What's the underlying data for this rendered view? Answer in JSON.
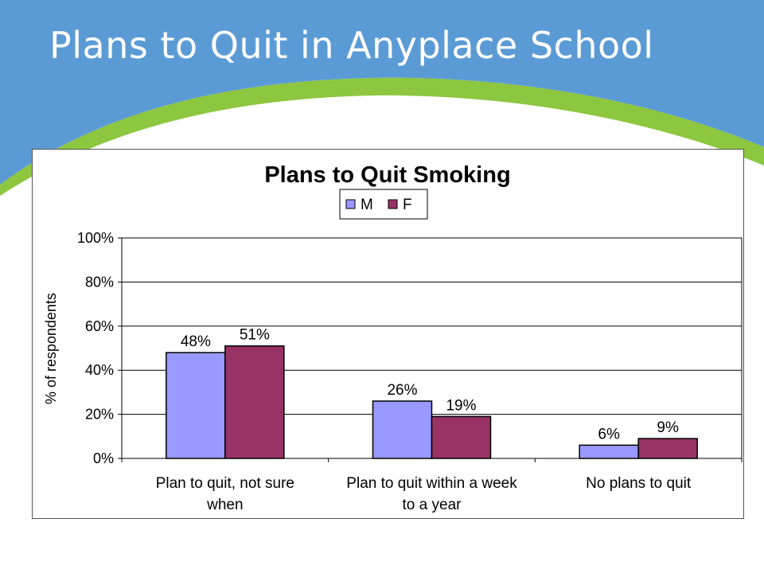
{
  "slide": {
    "title": "Plans to Quit in Anyplace School",
    "colors": {
      "header_blue": "#5b9bd5",
      "accent_green": "#8dc63f"
    }
  },
  "chart_data": {
    "type": "bar",
    "title": "Plans to Quit Smoking",
    "xlabel": "",
    "ylabel": "% of respondents",
    "ylim": [
      0,
      100
    ],
    "yticks": [
      "0%",
      "20%",
      "40%",
      "60%",
      "80%",
      "100%"
    ],
    "categories": [
      [
        "Plan to quit, not sure",
        "when"
      ],
      [
        "Plan to quit within a week",
        "to a year"
      ],
      [
        "No plans to quit"
      ]
    ],
    "series": [
      {
        "name": "M",
        "color": "#9999ff",
        "values": [
          48,
          26,
          6
        ],
        "labels": [
          "48%",
          "26%",
          "6%"
        ]
      },
      {
        "name": "F",
        "color": "#993366",
        "values": [
          51,
          19,
          9
        ],
        "labels": [
          "51%",
          "19%",
          "9%"
        ]
      }
    ],
    "grid": true,
    "legend": "top-center"
  }
}
